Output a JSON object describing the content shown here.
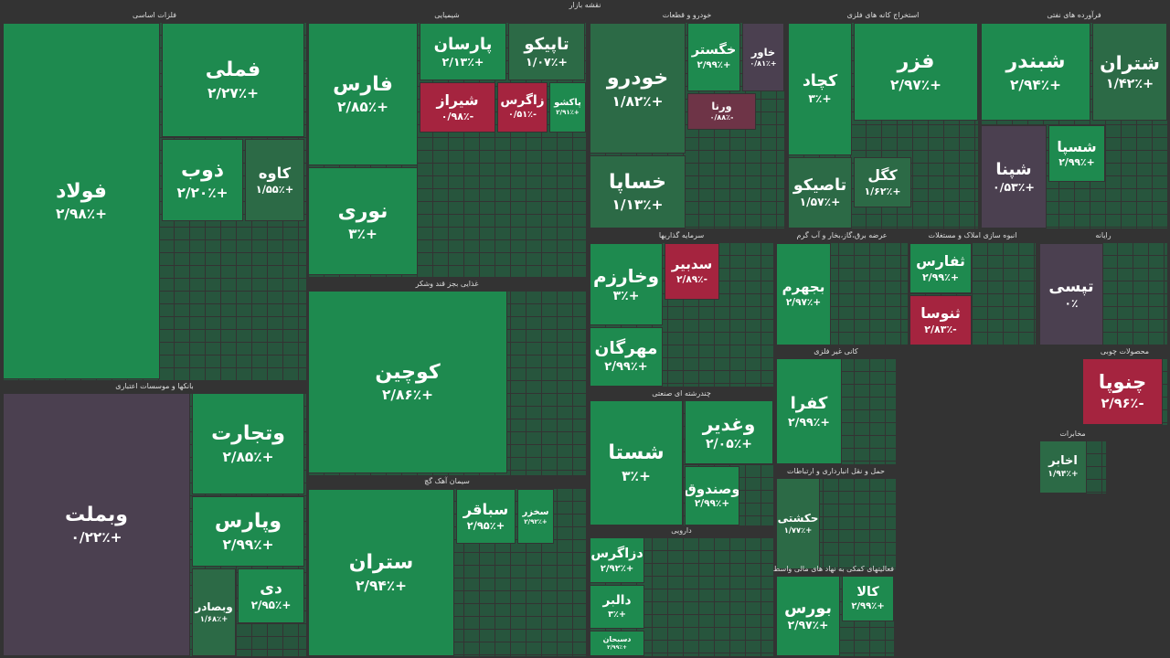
{
  "title": "نقشه بازار",
  "sectors": [
    {
      "name": "فلزات اساسی",
      "tiles": [
        {
          "name": "فولاد",
          "change": "+۲/۹۸٪",
          "color": "#1e8a4f"
        },
        {
          "name": "فملی",
          "change": "+۲/۲۷٪",
          "color": "#1e8a4f"
        },
        {
          "name": "ذوب",
          "change": "+۲/۲۰٪",
          "color": "#1e8a4f"
        },
        {
          "name": "کاوه",
          "change": "+۱/۵۵٪",
          "color": "#2c6a46"
        }
      ]
    },
    {
      "name": "بانکها و موسسات اعتباری",
      "tiles": [
        {
          "name": "وبملت",
          "change": "+۰/۲۲٪",
          "color": "#4b4050"
        },
        {
          "name": "وتجارت",
          "change": "+۲/۸۵٪",
          "color": "#1e8a4f"
        },
        {
          "name": "وپارس",
          "change": "+۲/۹۹٪",
          "color": "#1e8a4f"
        },
        {
          "name": "دی",
          "change": "+۲/۹۵٪",
          "color": "#1e8a4f"
        },
        {
          "name": "وبصادر",
          "change": "+۱/۶۸٪",
          "color": "#2c6a46"
        }
      ]
    },
    {
      "name": "شیمیایی",
      "tiles": [
        {
          "name": "فارس",
          "change": "+۲/۸۵٪",
          "color": "#1e8a4f"
        },
        {
          "name": "نوری",
          "change": "+۳٪",
          "color": "#1e8a4f"
        },
        {
          "name": "پارسان",
          "change": "+۲/۱۳٪",
          "color": "#1e8a4f"
        },
        {
          "name": "تاپیکو",
          "change": "+۱/۰۷٪",
          "color": "#2c6a46"
        },
        {
          "name": "شیراز",
          "change": "-۰/۹۸٪",
          "color": "#a5243f"
        },
        {
          "name": "زاگرس",
          "change": "-۰/۵۱٪",
          "color": "#a5243f"
        },
        {
          "name": "پاکشو",
          "change": "+۲/۹۱٪",
          "color": "#1e8a4f"
        }
      ]
    },
    {
      "name": "غذایی بجز قند وشکر",
      "tiles": [
        {
          "name": "کوچین",
          "change": "+۲/۸۶٪",
          "color": "#1e8a4f"
        }
      ]
    },
    {
      "name": "سیمان آهک گچ",
      "tiles": [
        {
          "name": "ستران",
          "change": "+۲/۹۴٪",
          "color": "#1e8a4f"
        },
        {
          "name": "سباقر",
          "change": "+۲/۹۵٪",
          "color": "#1e8a4f"
        },
        {
          "name": "سخزر",
          "change": "+۲/۹۲٪",
          "color": "#1e8a4f"
        }
      ]
    },
    {
      "name": "خودرو و قطعات",
      "tiles": [
        {
          "name": "خودرو",
          "change": "+۱/۸۲٪",
          "color": "#2c6a46"
        },
        {
          "name": "خگستر",
          "change": "+۲/۹۹٪",
          "color": "#1e8a4f"
        },
        {
          "name": "خاور",
          "change": "+۰/۸۱٪",
          "color": "#4b4050"
        },
        {
          "name": "خساپا",
          "change": "+۱/۱۳٪",
          "color": "#2c6a46"
        },
        {
          "name": "ورنا",
          "change": "-۰/۸۸٪",
          "color": "#6e3447"
        }
      ]
    },
    {
      "name": "سرمایه گذاریها",
      "tiles": [
        {
          "name": "وخارزم",
          "change": "+۳٪",
          "color": "#1e8a4f"
        },
        {
          "name": "مهرگان",
          "change": "+۲/۹۹٪",
          "color": "#1e8a4f"
        },
        {
          "name": "سدبیر",
          "change": "-۲/۸۹٪",
          "color": "#a5243f"
        }
      ]
    },
    {
      "name": "چندرشته ای صنعتی",
      "tiles": [
        {
          "name": "شستا",
          "change": "+۳٪",
          "color": "#1e8a4f"
        },
        {
          "name": "وغدیر",
          "change": "+۲/۰۵٪",
          "color": "#1e8a4f"
        },
        {
          "name": "وصندوق",
          "change": "+۲/۹۹٪",
          "color": "#1e8a4f"
        }
      ]
    },
    {
      "name": "دارویی",
      "tiles": [
        {
          "name": "دزاگرس",
          "change": "+۲/۹۲٪",
          "color": "#1e8a4f"
        },
        {
          "name": "دالبر",
          "change": "+۳٪",
          "color": "#1e8a4f"
        },
        {
          "name": "دسبحان",
          "change": "+۲/۹۹٪",
          "color": "#1e8a4f"
        }
      ]
    },
    {
      "name": "استخراج کانه های فلزی",
      "tiles": [
        {
          "name": "کچاد",
          "change": "+۳٪",
          "color": "#1e8a4f"
        },
        {
          "name": "فزر",
          "change": "+۲/۹۷٪",
          "color": "#1e8a4f"
        },
        {
          "name": "تاصیکو",
          "change": "+۱/۵۷٪",
          "color": "#2c6a46"
        },
        {
          "name": "کگل",
          "change": "+۱/۶۲٪",
          "color": "#2c6a46"
        }
      ]
    },
    {
      "name": "فرآورده های نفتی",
      "tiles": [
        {
          "name": "شبندر",
          "change": "+۲/۹۴٪",
          "color": "#1e8a4f"
        },
        {
          "name": "شتران",
          "change": "+۱/۴۲٪",
          "color": "#2c6a46"
        },
        {
          "name": "شپنا",
          "change": "+۰/۵۳٪",
          "color": "#4b4050"
        },
        {
          "name": "شسپا",
          "change": "+۲/۹۹٪",
          "color": "#1e8a4f"
        }
      ]
    },
    {
      "name": "عرضه برق،گاز،بخار و آب گرم",
      "tiles": [
        {
          "name": "بجهرم",
          "change": "+۲/۹۷٪",
          "color": "#1e8a4f"
        }
      ]
    },
    {
      "name": "انبوه سازی املاک و مستغلات",
      "tiles": [
        {
          "name": "ثفارس",
          "change": "+۲/۹۹٪",
          "color": "#1e8a4f"
        },
        {
          "name": "ثنوسا",
          "change": "-۲/۸۳٪",
          "color": "#a5243f"
        }
      ]
    },
    {
      "name": "رایانه",
      "tiles": [
        {
          "name": "تپسی",
          "change": "۰٪",
          "color": "#4b4050"
        }
      ]
    },
    {
      "name": "کانی غیر فلزی",
      "tiles": [
        {
          "name": "کفرا",
          "change": "+۲/۹۹٪",
          "color": "#1e8a4f"
        }
      ]
    },
    {
      "name": "محصولات چوبی",
      "tiles": [
        {
          "name": "چنوپا",
          "change": "-۲/۹۶٪",
          "color": "#a5243f"
        }
      ]
    },
    {
      "name": "حمل و نقل انبارداری و ارتباطات",
      "tiles": [
        {
          "name": "حکشتی",
          "change": "+۱/۷۷٪",
          "color": "#2c6a46"
        }
      ]
    },
    {
      "name": "فعالیتهای کمکی به نهاد های مالی واسط",
      "tiles": [
        {
          "name": "بورس",
          "change": "+۲/۹۷٪",
          "color": "#1e8a4f"
        },
        {
          "name": "کالا",
          "change": "+۲/۹۹٪",
          "color": "#1e8a4f"
        }
      ]
    },
    {
      "name": "مخابرات",
      "tiles": [
        {
          "name": "اخابر",
          "change": "+۱/۹۴٪",
          "color": "#2c6a46"
        }
      ]
    }
  ]
}
